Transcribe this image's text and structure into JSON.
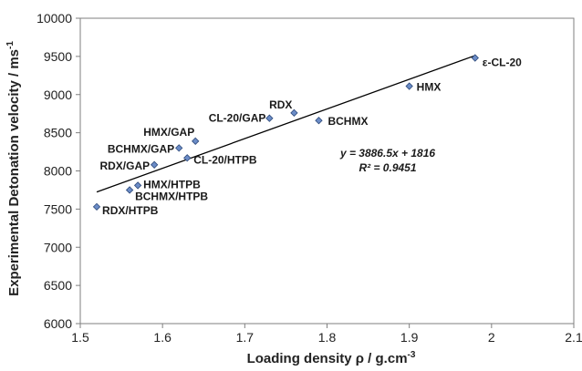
{
  "chart_data": {
    "type": "scatter",
    "xlabel": "Loading density ρ / g.cm",
    "xlabel_sup": "-3",
    "ylabel": "Experimental Detonation velocity / ms",
    "ylabel_sup": "-1",
    "xlim": [
      1.5,
      2.1
    ],
    "ylim": [
      6000,
      10000
    ],
    "xticks": [
      "1.5",
      "1.6",
      "1.7",
      "1.8",
      "1.9",
      "2",
      "2.1"
    ],
    "yticks": [
      "6000",
      "6500",
      "7000",
      "7500",
      "8000",
      "8500",
      "9000",
      "9500",
      "10000"
    ],
    "grid": false,
    "marker_color": "#6b8cc7",
    "marker_edge_color": "#2e4a7a",
    "points": [
      {
        "label": "RDX/HTPB",
        "x": 1.52,
        "y": 7530
      },
      {
        "label": "BCHMX/HTPB",
        "x": 1.56,
        "y": 7750
      },
      {
        "label": "HMX/HTPB",
        "x": 1.57,
        "y": 7810
      },
      {
        "label": "RDX/GAP",
        "x": 1.59,
        "y": 8080
      },
      {
        "label": "BCHMX/GAP",
        "x": 1.62,
        "y": 8300
      },
      {
        "label": "HMX/GAP",
        "x": 1.64,
        "y": 8390
      },
      {
        "label": "CL-20/HTPB",
        "x": 1.63,
        "y": 8170
      },
      {
        "label": "CL-20/GAP",
        "x": 1.73,
        "y": 8690
      },
      {
        "label": "RDX",
        "x": 1.76,
        "y": 8760
      },
      {
        "label": "BCHMX",
        "x": 1.79,
        "y": 8660
      },
      {
        "label": "HMX",
        "x": 1.9,
        "y": 9110
      },
      {
        "label": "ε-CL-20",
        "x": 1.98,
        "y": 9480
      }
    ],
    "trendline": {
      "slope": 3886.5,
      "intercept": 1816,
      "x_range": [
        1.52,
        1.98
      ],
      "color": "#000000",
      "equation": "y = 3886.5x + 1816",
      "r_squared": "R² = 0.9451"
    }
  }
}
